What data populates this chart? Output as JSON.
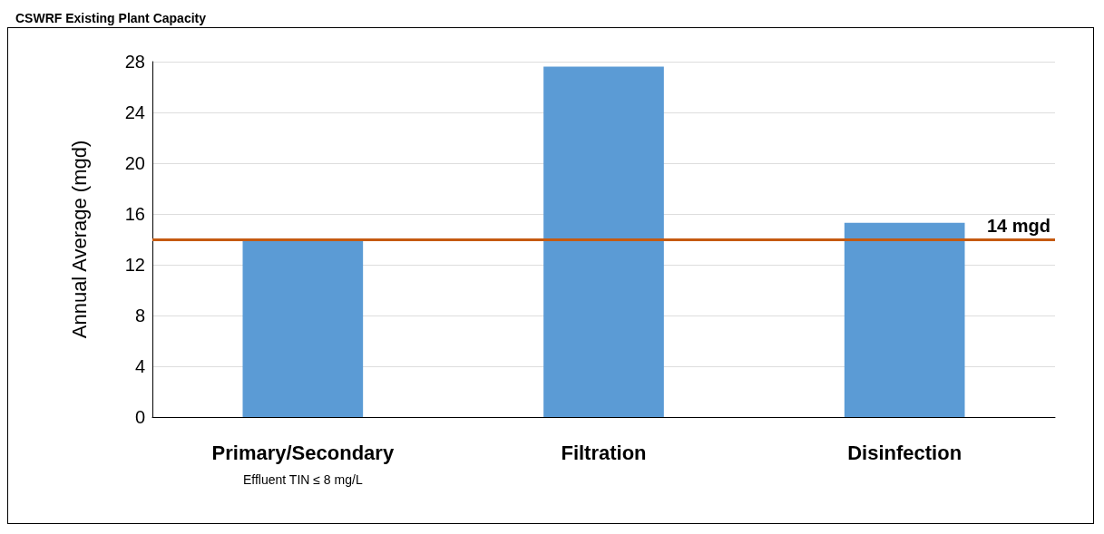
{
  "chart_data": {
    "type": "bar",
    "title": "CSWRF Existing Plant Capacity",
    "ylabel": "Annual Average (mgd)",
    "categories": [
      "Primary/Secondary",
      "Filtration",
      "Disinfection"
    ],
    "values": [
      14,
      27.6,
      15.3
    ],
    "color": "#5b9bd5",
    "ylim": [
      0,
      28
    ],
    "yticks": [
      0,
      4,
      8,
      12,
      16,
      20,
      24,
      28
    ],
    "grid": "y",
    "ref_lines": [
      {
        "axis": "y",
        "value": 14,
        "label": "14 mgd",
        "color": "#c55a11"
      }
    ],
    "annotations": [
      "Effluent TIN ≤ 8 mg/L"
    ]
  }
}
